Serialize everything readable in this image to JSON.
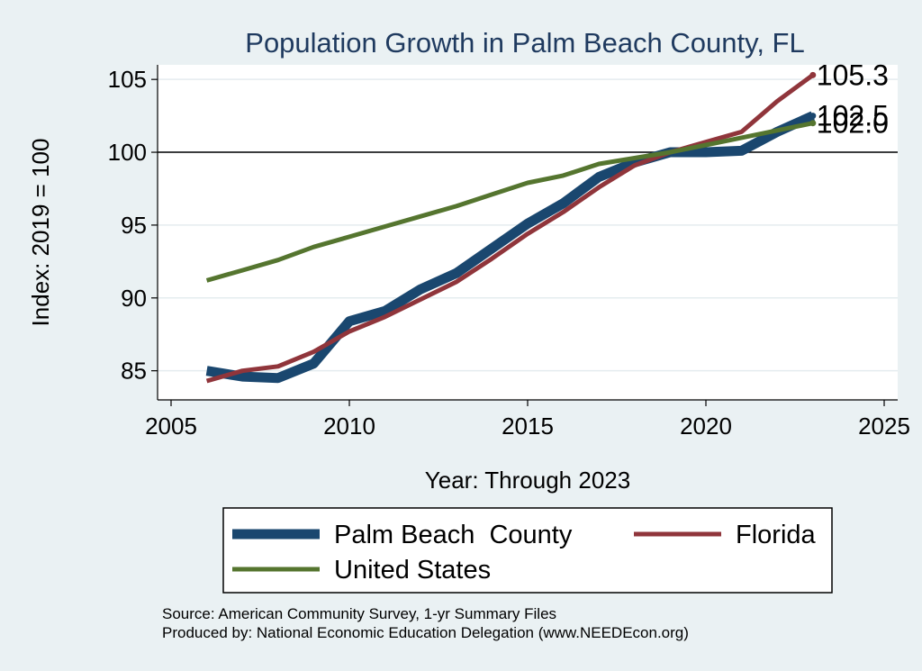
{
  "chart_data": {
    "type": "line",
    "title": "Population Growth in Palm Beach County, FL",
    "xlabel": "Year: Through 2023",
    "ylabel": "Index: 2019 = 100",
    "xlim": [
      2005,
      2025
    ],
    "ylim": [
      83,
      106
    ],
    "x_ticks": [
      2005,
      2010,
      2015,
      2020,
      2025
    ],
    "y_ticks": [
      85,
      90,
      95,
      100,
      105
    ],
    "reference_line": 100,
    "x": [
      2006,
      2007,
      2008,
      2009,
      2010,
      2011,
      2012,
      2013,
      2014,
      2015,
      2016,
      2017,
      2018,
      2019,
      2020,
      2021,
      2022,
      2023
    ],
    "series": [
      {
        "name": "Palm Beach  County",
        "color": "#1a476f",
        "values": [
          85.0,
          84.6,
          84.5,
          85.5,
          88.4,
          89.1,
          90.6,
          91.7,
          93.4,
          95.1,
          96.5,
          98.3,
          99.3,
          100.0,
          100.0,
          100.1,
          101.4,
          102.5
        ],
        "end_label": "102.5"
      },
      {
        "name": "Florida",
        "color": "#90353b",
        "values": [
          84.3,
          85.0,
          85.3,
          86.3,
          87.7,
          88.7,
          89.9,
          91.1,
          92.7,
          94.4,
          95.9,
          97.6,
          99.1,
          100.0,
          100.7,
          101.4,
          103.5,
          105.3
        ],
        "end_label": "105.3"
      },
      {
        "name": "United States",
        "color": "#55752f",
        "values": [
          91.2,
          91.9,
          92.6,
          93.5,
          94.2,
          94.9,
          95.6,
          96.3,
          97.1,
          97.9,
          98.4,
          99.2,
          99.6,
          100.0,
          100.5,
          101.0,
          101.5,
          102.0
        ],
        "end_label": "102.0"
      }
    ],
    "legend": {
      "position": "bottom",
      "items": [
        "Palm Beach  County",
        "Florida",
        "United States"
      ]
    },
    "source_line": "Source: American Community Survey, 1-yr Summary Files",
    "produced_line": "Produced by: National Economic Education Delegation (www.NEEDEcon.org)"
  }
}
